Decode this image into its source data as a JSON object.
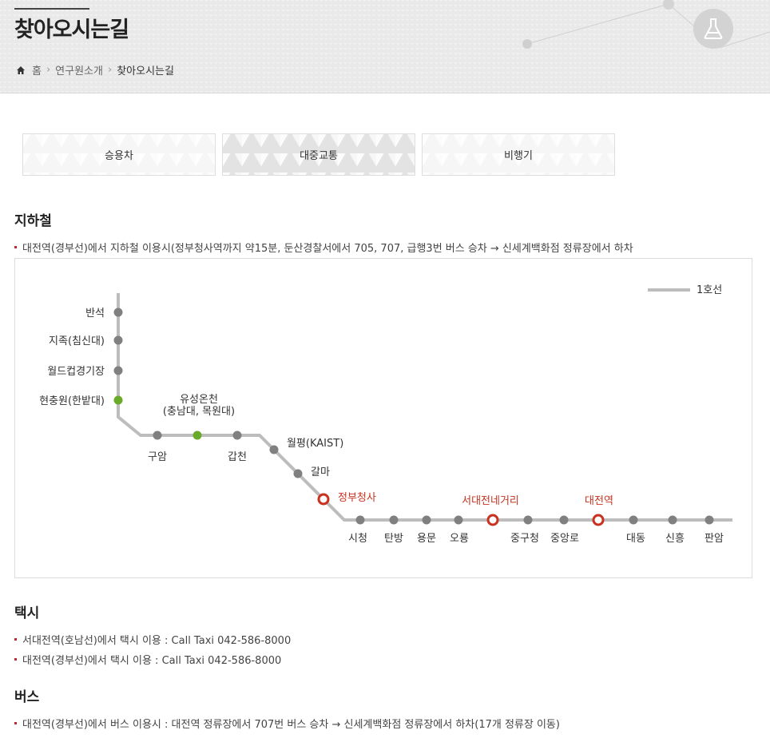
{
  "header": {
    "title": "찾아오시는길"
  },
  "breadcrumb": {
    "home": "홈",
    "section": "연구원소개",
    "current": "찾아오시는길"
  },
  "tabs": [
    {
      "label": "승용차",
      "active": false
    },
    {
      "label": "대중교통",
      "active": true
    },
    {
      "label": "비행기",
      "active": false
    }
  ],
  "subway": {
    "title": "지하철",
    "note": "대전역(경부선)에서 지하철 이용시(정부청사역까지 약15분, 둔산경찰서에서 705, 707, 급행3번 버스 승차 → 신세계백화점 정류장에서 하차",
    "legend": "1호선",
    "line_color": "#bdbdbd",
    "stations": [
      {
        "name": "반석",
        "type": "normal"
      },
      {
        "name": "지족(침신대)",
        "type": "normal"
      },
      {
        "name": "월드컵경기장",
        "type": "normal"
      },
      {
        "name": "현충원(한밭대)",
        "type": "transfer"
      },
      {
        "name": "구암",
        "type": "normal"
      },
      {
        "name": "유성온천",
        "name2": "(충남대, 목원대)",
        "type": "transfer"
      },
      {
        "name": "갑천",
        "type": "normal"
      },
      {
        "name": "월평(KAIST)",
        "type": "normal"
      },
      {
        "name": "갈마",
        "type": "normal"
      },
      {
        "name": "정부청사",
        "type": "highlight"
      },
      {
        "name": "시청",
        "type": "normal"
      },
      {
        "name": "탄방",
        "type": "normal"
      },
      {
        "name": "용문",
        "type": "normal"
      },
      {
        "name": "오룡",
        "type": "normal"
      },
      {
        "name": "서대전네거리",
        "type": "highlight"
      },
      {
        "name": "중구청",
        "type": "normal"
      },
      {
        "name": "중앙로",
        "type": "normal"
      },
      {
        "name": "대전역",
        "type": "highlight"
      },
      {
        "name": "대동",
        "type": "normal"
      },
      {
        "name": "신흥",
        "type": "normal"
      },
      {
        "name": "판암",
        "type": "normal"
      }
    ],
    "colors": {
      "normal": "#808080",
      "transfer": "#6aaa2a",
      "highlight": "#c8321f"
    }
  },
  "taxi": {
    "title": "택시",
    "items": [
      "서대전역(호남선)에서 택시 이용 : Call Taxi 042-586-8000",
      "대전역(경부선)에서 택시 이용 : Call Taxi 042-586-8000"
    ]
  },
  "bus": {
    "title": "버스",
    "items": [
      "대전역(경부선)에서 버스 이용시 : 대전역 정류장에서 707번 버스 승차 → 신세계백화점 정류장에서 하차(17개 정류장 이동)"
    ]
  }
}
